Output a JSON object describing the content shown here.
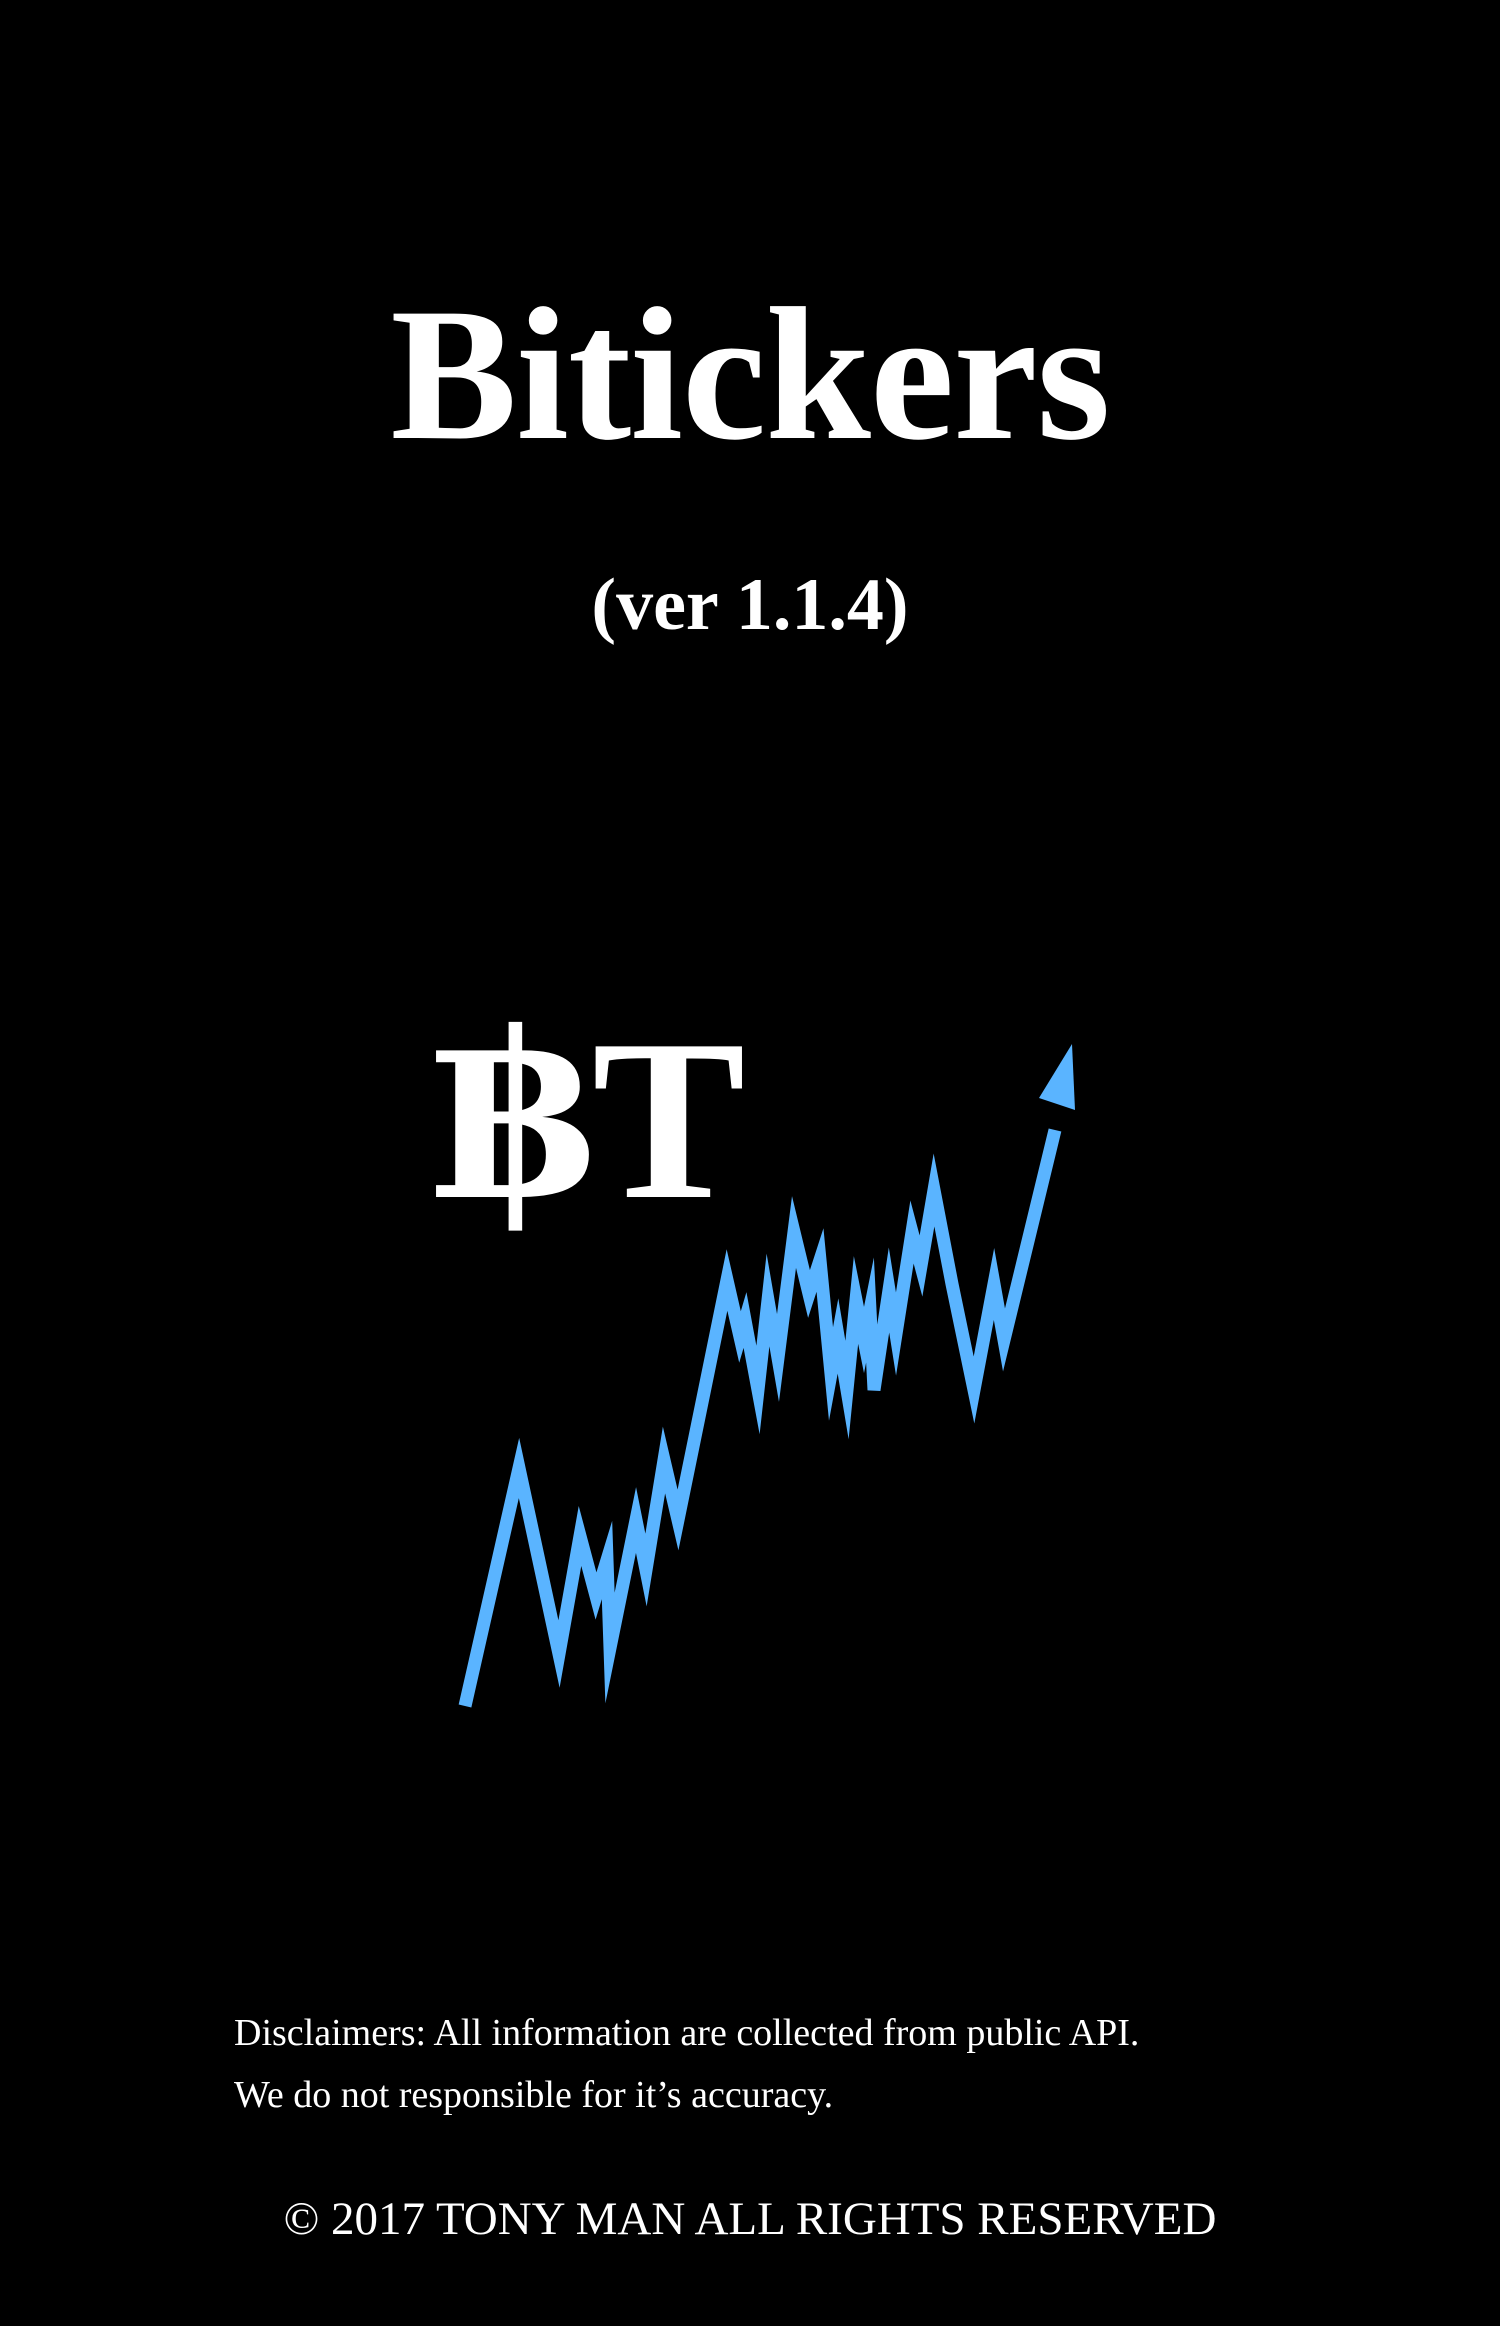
{
  "splash": {
    "title": "Bitickers",
    "version": "(ver 1.1.4)",
    "logo_text": "฿T",
    "logo_icon": "rising-stock-arrow-icon",
    "accent_color": "#5AB4FF",
    "background_color": "#000000",
    "text_color": "#FFFFFF"
  },
  "footer": {
    "disclaimer_line1": "Disclaimers: All information are collected from public API.",
    "disclaimer_line2": "We do not responsible for it’s accuracy.",
    "copyright": "© 2017 TONY MAN ALL RIGHTS RESERVED"
  }
}
